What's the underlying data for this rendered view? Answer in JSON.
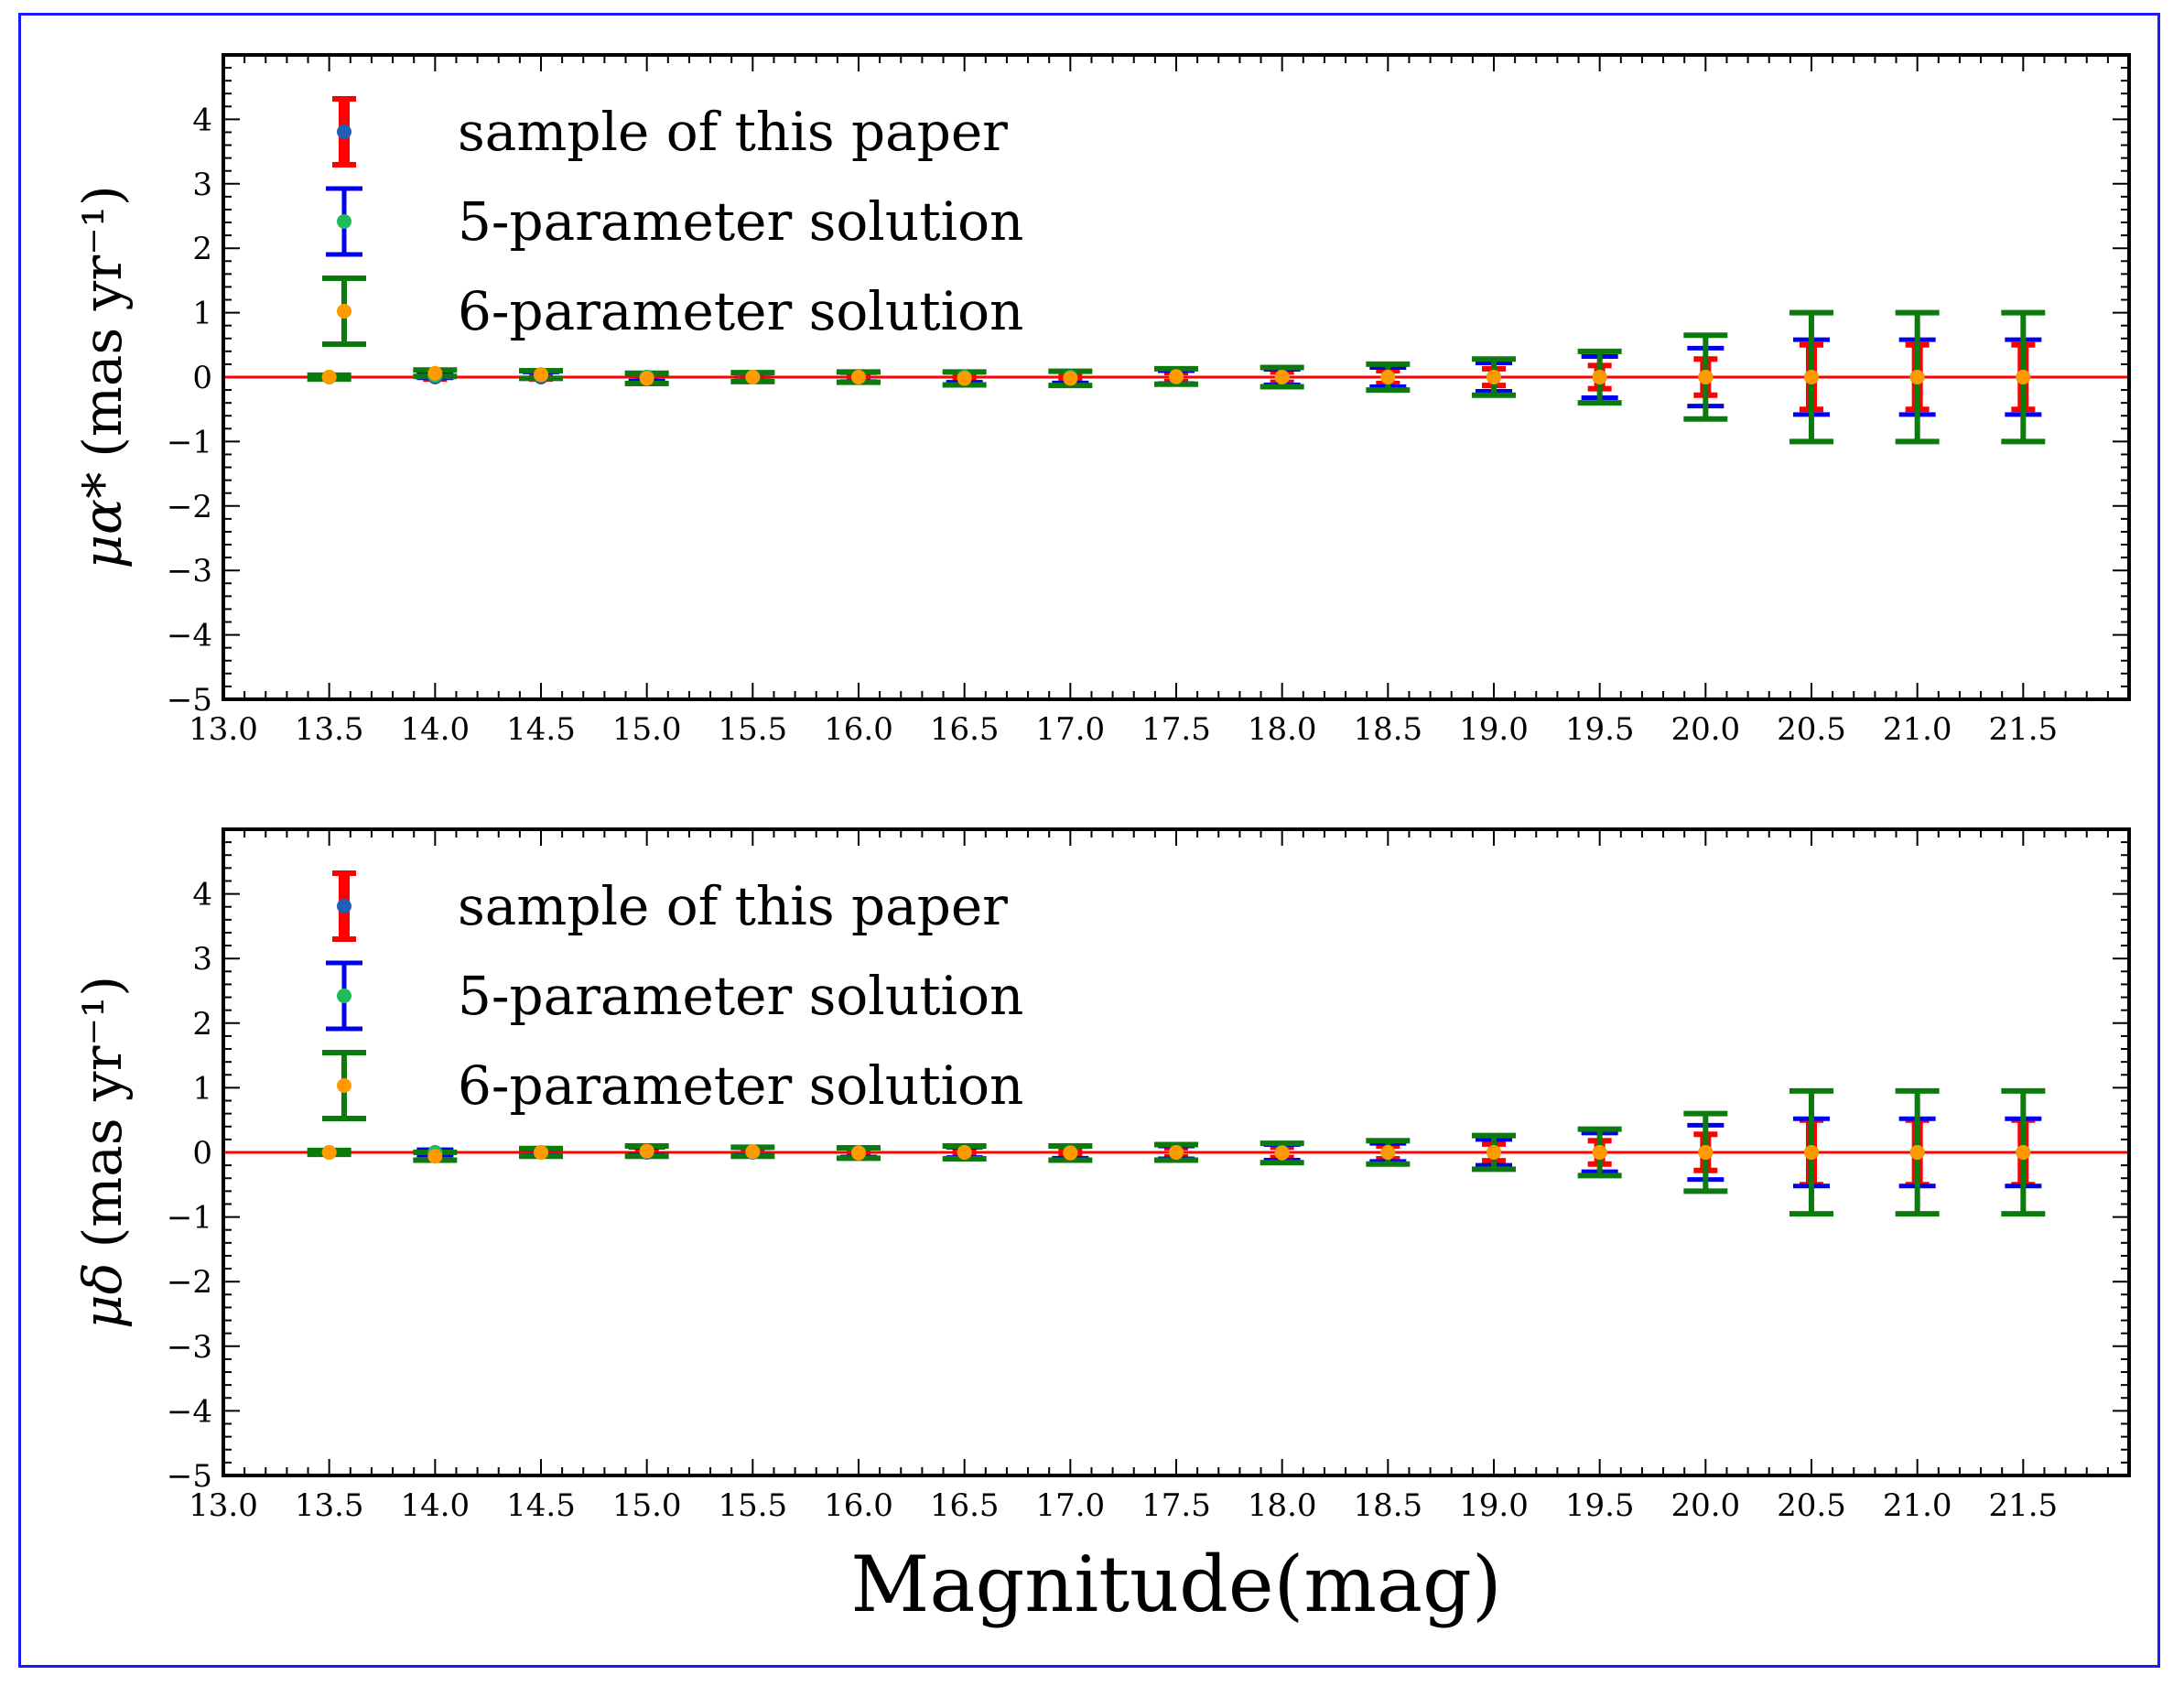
{
  "colors": {
    "frame": "#1a1aff",
    "zero_line": "#ff0000",
    "sample_bar": "#ff0000",
    "sample_point": "#1f5fb4",
    "five_param_bar": "#0000ee",
    "five_param_point": "#1dbb5a",
    "six_param_bar": "#0c7a0c",
    "six_param_point": "#ff9a00"
  },
  "chart_data": [
    {
      "type": "errorbar",
      "panel": "top",
      "ylabel_symbol": "μα*",
      "ylabel_unit": "(mas yr⁻¹)",
      "xlabel": "",
      "xlim": [
        13.0,
        22.0
      ],
      "ylim": [
        -5,
        5
      ],
      "yticks": [
        "4",
        "3",
        "2",
        "1",
        "0",
        "-1",
        "-2",
        "-3",
        "-4",
        "-5"
      ],
      "xticks": [
        "13.0",
        "13.5",
        "14.0",
        "14.5",
        "15.0",
        "15.5",
        "16.0",
        "16.5",
        "17.0",
        "17.5",
        "18.0",
        "18.5",
        "19.0",
        "19.5",
        "20.0",
        "20.5",
        "21.0",
        "21.5"
      ],
      "zero_line": 0,
      "legend": [
        "sample of this paper",
        "5-parameter solution",
        "6-parameter solution"
      ],
      "legend_position": "top-left",
      "series": [
        {
          "name": "sample of this paper",
          "x": [
            13.5,
            14.0,
            14.5,
            15.0,
            15.5,
            16.0,
            16.5,
            17.0,
            17.5,
            18.0,
            18.5,
            19.0,
            19.5,
            20.0,
            20.5,
            21.0,
            21.5
          ],
          "y": [
            0,
            0,
            0,
            0,
            0,
            0,
            0,
            0,
            0,
            0,
            0,
            0,
            0,
            0,
            0,
            0,
            0
          ],
          "yerr": [
            0.02,
            0.03,
            0.03,
            0.04,
            0.04,
            0.05,
            0.05,
            0.06,
            0.07,
            0.08,
            0.1,
            0.13,
            0.18,
            0.28,
            0.5,
            0.5,
            0.5
          ]
        },
        {
          "name": "5-parameter solution",
          "x": [
            13.5,
            14.0,
            14.5,
            15.0,
            15.5,
            16.0,
            16.5,
            17.0,
            17.5,
            18.0,
            18.5,
            19.0,
            19.5,
            20.0,
            20.5,
            21.0,
            21.5
          ],
          "y": [
            0,
            0.03,
            0.03,
            0,
            0,
            0,
            0,
            0,
            0,
            0,
            0,
            0,
            0,
            0,
            0,
            0,
            0
          ],
          "yerr": [
            0.03,
            0.04,
            0.05,
            0.06,
            0.06,
            0.07,
            0.08,
            0.09,
            0.1,
            0.12,
            0.15,
            0.22,
            0.32,
            0.45,
            0.58,
            0.58,
            0.58
          ]
        },
        {
          "name": "6-parameter solution",
          "x": [
            13.5,
            14.0,
            14.5,
            15.0,
            15.5,
            16.0,
            16.5,
            17.0,
            17.5,
            18.0,
            18.5,
            19.0,
            19.5,
            20.0,
            20.5,
            21.0,
            21.5
          ],
          "y": [
            0,
            0.06,
            0.04,
            -0.02,
            0,
            0,
            -0.02,
            -0.02,
            0.01,
            0,
            0,
            0,
            0,
            0,
            0,
            0,
            0
          ],
          "yerr": [
            0.03,
            0.05,
            0.06,
            0.08,
            0.07,
            0.08,
            0.1,
            0.11,
            0.12,
            0.15,
            0.2,
            0.28,
            0.4,
            0.65,
            1.0,
            1.0,
            1.0
          ]
        }
      ]
    },
    {
      "type": "errorbar",
      "panel": "bottom",
      "ylabel_symbol": "μδ",
      "ylabel_unit": "(mas yr⁻¹)",
      "xlabel": "Magnitude(mag)",
      "xlim": [
        13.0,
        22.0
      ],
      "ylim": [
        -5,
        5
      ],
      "yticks": [
        "4",
        "3",
        "2",
        "1",
        "0",
        "-1",
        "-2",
        "-3",
        "-4",
        "-5"
      ],
      "xticks": [
        "13.0",
        "13.5",
        "14.0",
        "14.5",
        "15.0",
        "15.5",
        "16.0",
        "16.5",
        "17.0",
        "17.5",
        "18.0",
        "18.5",
        "19.0",
        "19.5",
        "20.0",
        "20.5",
        "21.0",
        "21.5"
      ],
      "zero_line": 0,
      "legend": [
        "sample of this paper",
        "5-parameter solution",
        "6-parameter solution"
      ],
      "legend_position": "top-left",
      "series": [
        {
          "name": "sample of this paper",
          "x": [
            13.5,
            14.0,
            14.5,
            15.0,
            15.5,
            16.0,
            16.5,
            17.0,
            17.5,
            18.0,
            18.5,
            19.0,
            19.5,
            20.0,
            20.5,
            21.0,
            21.5
          ],
          "y": [
            0,
            0,
            0,
            0,
            0,
            0,
            0,
            0,
            0,
            0,
            0,
            0,
            0,
            0,
            0,
            0,
            0
          ],
          "yerr": [
            0.02,
            0.03,
            0.03,
            0.04,
            0.04,
            0.05,
            0.05,
            0.06,
            0.07,
            0.08,
            0.1,
            0.13,
            0.18,
            0.28,
            0.5,
            0.5,
            0.5
          ]
        },
        {
          "name": "5-parameter solution",
          "x": [
            13.5,
            14.0,
            14.5,
            15.0,
            15.5,
            16.0,
            16.5,
            17.0,
            17.5,
            18.0,
            18.5,
            19.0,
            19.5,
            20.0,
            20.5,
            21.0,
            21.5
          ],
          "y": [
            0,
            0,
            0,
            0.02,
            0.01,
            0,
            0,
            0,
            0,
            0,
            0,
            0,
            0,
            0,
            0,
            0,
            0
          ],
          "yerr": [
            0.03,
            0.04,
            0.05,
            0.06,
            0.06,
            0.07,
            0.08,
            0.09,
            0.1,
            0.12,
            0.14,
            0.2,
            0.3,
            0.42,
            0.52,
            0.52,
            0.52
          ]
        },
        {
          "name": "6-parameter solution",
          "x": [
            13.5,
            14.0,
            14.5,
            15.0,
            15.5,
            16.0,
            16.5,
            17.0,
            17.5,
            18.0,
            18.5,
            19.0,
            19.5,
            20.0,
            20.5,
            21.0,
            21.5
          ],
          "y": [
            0,
            -0.06,
            0,
            0.02,
            0.01,
            -0.01,
            0,
            -0.01,
            0,
            -0.01,
            0,
            0,
            0,
            0,
            0,
            0,
            0
          ],
          "yerr": [
            0.03,
            0.06,
            0.06,
            0.08,
            0.07,
            0.08,
            0.1,
            0.11,
            0.12,
            0.15,
            0.18,
            0.26,
            0.36,
            0.6,
            0.95,
            0.95,
            0.95
          ]
        }
      ]
    }
  ]
}
